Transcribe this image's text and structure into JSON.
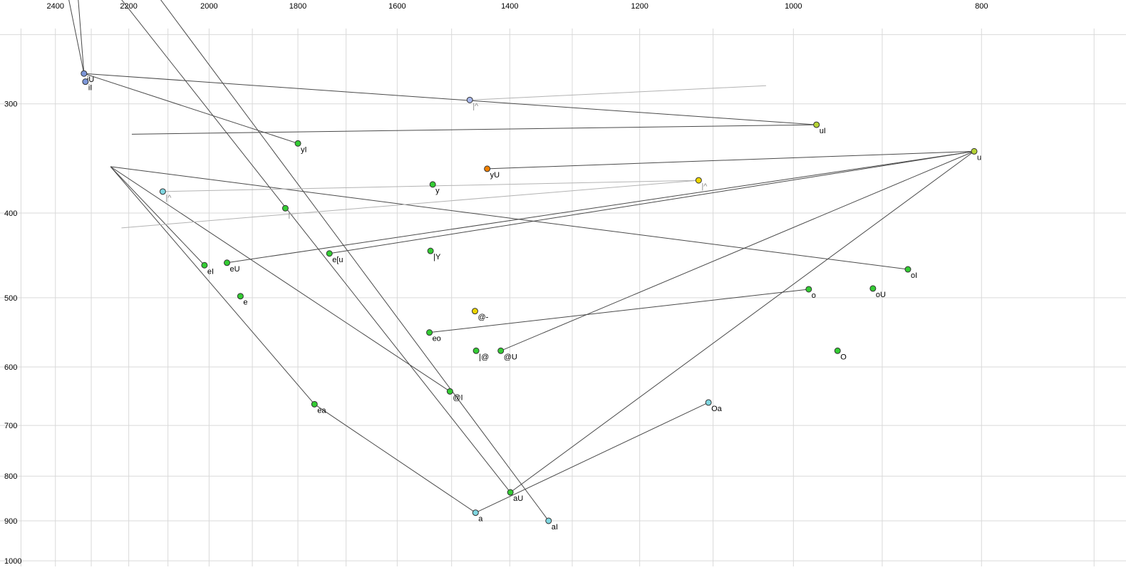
{
  "chart_data": {
    "type": "scatter",
    "description": "Vowel formant plot (F2 horizontal, reversed, log scale; F1 vertical, reversed, log scale) with diphthong trajectory lines",
    "x_axis": {
      "scale": "log",
      "reversed": true,
      "min": 674,
      "max": 2563,
      "ticks": [
        2400,
        2200,
        2000,
        1800,
        1600,
        1400,
        1200,
        1000,
        800
      ],
      "gridlines": [
        2500,
        2400,
        2300,
        2200,
        2100,
        2000,
        1900,
        1800,
        1700,
        1600,
        1500,
        1400,
        1300,
        1200,
        1100,
        1000,
        900,
        800,
        700
      ]
    },
    "y_axis": {
      "scale": "log",
      "reversed": true,
      "min": 246,
      "max": 1015,
      "ticks": [
        300,
        400,
        500,
        600,
        700,
        800,
        900,
        1000
      ],
      "gridlines": [
        250,
        300,
        400,
        500,
        600,
        700,
        800,
        900,
        1000
      ]
    },
    "colors": {
      "grid": "#d9d9d9",
      "tick_text": "#000000",
      "label_default": "#000000",
      "label_gray": "#8a8a8a",
      "point_stroke": "#333333",
      "lines": {
        "dark": "#4a4a4a",
        "gray": "#b3b3b3"
      },
      "points": {
        "green": "#33cc33",
        "yellowgreen": "#b5d334",
        "blue": "#7c96d8",
        "periwinkle": "#a8b8ec",
        "cyan": "#7fd6e0",
        "orange": "#f08000",
        "yellow": "#ecd500"
      }
    },
    "points": [
      {
        "label": "iU",
        "f2": 2320,
        "f1": 277,
        "color": "blue"
      },
      {
        "label": "iI",
        "f2": 2316,
        "f1": 283,
        "color": "blue"
      },
      {
        "label": "|^",
        "f2": 1468,
        "f1": 297,
        "color": "periwinkle",
        "label_color": "gray"
      },
      {
        "label": "uI",
        "f2": 973,
        "f1": 317,
        "color": "yellowgreen"
      },
      {
        "label": "yI",
        "f2": 1800,
        "f1": 333,
        "color": "green"
      },
      {
        "label": "u",
        "f2": 807,
        "f1": 340,
        "color": "yellowgreen"
      },
      {
        "label": "yU",
        "f2": 1438,
        "f1": 356,
        "color": "orange"
      },
      {
        "label": "y",
        "f2": 1534,
        "f1": 371,
        "color": "green"
      },
      {
        "label": "|^",
        "f2": 1119,
        "f1": 367,
        "color": "yellow",
        "label_color": "gray"
      },
      {
        "label": "|^",
        "f2": 2113,
        "f1": 378,
        "color": "cyan",
        "label_color": "gray"
      },
      {
        "label": "|-",
        "f2": 1827,
        "f1": 395,
        "color": "green",
        "label_color": "gray"
      },
      {
        "label": "e[u",
        "f2": 1734,
        "f1": 445,
        "color": "green"
      },
      {
        "label": "|Y",
        "f2": 1538,
        "f1": 442,
        "color": "green"
      },
      {
        "label": "eI",
        "f2": 2011,
        "f1": 459,
        "color": "green"
      },
      {
        "label": "eU",
        "f2": 1958,
        "f1": 456,
        "color": "green"
      },
      {
        "label": "e",
        "f2": 1927,
        "f1": 498,
        "color": "green"
      },
      {
        "label": "@-",
        "f2": 1459,
        "f1": 518,
        "color": "yellow"
      },
      {
        "label": "eo",
        "f2": 1540,
        "f1": 548,
        "color": "green"
      },
      {
        "label": "|@",
        "f2": 1457,
        "f1": 575,
        "color": "green"
      },
      {
        "label": "@U",
        "f2": 1415,
        "f1": 575,
        "color": "green"
      },
      {
        "label": "@I",
        "f2": 1503,
        "f1": 640,
        "color": "green"
      },
      {
        "label": "ea",
        "f2": 1765,
        "f1": 662,
        "color": "green"
      },
      {
        "label": "oI",
        "f2": 873,
        "f1": 464,
        "color": "green"
      },
      {
        "label": "o",
        "f2": 982,
        "f1": 489,
        "color": "green"
      },
      {
        "label": "oU",
        "f2": 910,
        "f1": 488,
        "color": "green"
      },
      {
        "label": "O",
        "f2": 949,
        "f1": 575,
        "color": "green"
      },
      {
        "label": "Oa",
        "f2": 1106,
        "f1": 659,
        "color": "cyan"
      },
      {
        "label": "aU",
        "f2": 1399,
        "f1": 835,
        "color": "green"
      },
      {
        "label": "a",
        "f2": 1458,
        "f1": 881,
        "color": "cyan"
      },
      {
        "label": "aI",
        "f2": 1337,
        "f1": 900,
        "color": "cyan"
      }
    ],
    "segments": [
      {
        "from": [
          2364,
          226
        ],
        "to": [
          2320,
          277
        ],
        "color": "dark"
      },
      {
        "from": [
          2338,
          222
        ],
        "to": [
          2320,
          277
        ],
        "color": "dark"
      },
      {
        "from": [
          2320,
          277
        ],
        "to": [
          973,
          317
        ],
        "color": "dark"
      },
      {
        "from": [
          2192,
          325
        ],
        "to": [
          973,
          317
        ],
        "color": "dark"
      },
      {
        "from": [
          2233,
          224
        ],
        "to": [
          1399,
          835
        ],
        "color": "dark"
      },
      {
        "from": [
          2131,
          224
        ],
        "to": [
          1337,
          900
        ],
        "color": "dark"
      },
      {
        "from": [
          2011,
          459
        ],
        "to": [
          2248,
          354
        ],
        "color": "dark"
      },
      {
        "from": [
          1503,
          640
        ],
        "to": [
          2248,
          354
        ],
        "color": "dark"
      },
      {
        "from": [
          1765,
          662
        ],
        "to": [
          2248,
          354
        ],
        "color": "dark"
      },
      {
        "from": [
          873,
          464
        ],
        "to": [
          2248,
          354
        ],
        "color": "dark"
      },
      {
        "from": [
          1765,
          662
        ],
        "to": [
          1458,
          881
        ],
        "color": "dark"
      },
      {
        "from": [
          1106,
          659
        ],
        "to": [
          1458,
          881
        ],
        "color": "dark"
      },
      {
        "from": [
          1399,
          835
        ],
        "to": [
          807,
          340
        ],
        "color": "dark"
      },
      {
        "from": [
          1415,
          575
        ],
        "to": [
          807,
          340
        ],
        "color": "dark"
      },
      {
        "from": [
          1734,
          445
        ],
        "to": [
          807,
          340
        ],
        "color": "dark"
      },
      {
        "from": [
          1958,
          456
        ],
        "to": [
          807,
          340
        ],
        "color": "dark"
      },
      {
        "from": [
          1438,
          356
        ],
        "to": [
          807,
          340
        ],
        "color": "dark"
      },
      {
        "from": [
          1540,
          548
        ],
        "to": [
          982,
          489
        ],
        "color": "dark"
      },
      {
        "from": [
          1800,
          333
        ],
        "to": [
          2320,
          277
        ],
        "color": "dark"
      },
      {
        "from": [
          2113,
          378
        ],
        "to": [
          1119,
          367
        ],
        "color": "gray"
      },
      {
        "from": [
          2219,
          416
        ],
        "to": [
          1119,
          367
        ],
        "color": "gray"
      },
      {
        "from": [
          1468,
          297
        ],
        "to": [
          1033,
          286
        ],
        "color": "gray"
      }
    ]
  }
}
